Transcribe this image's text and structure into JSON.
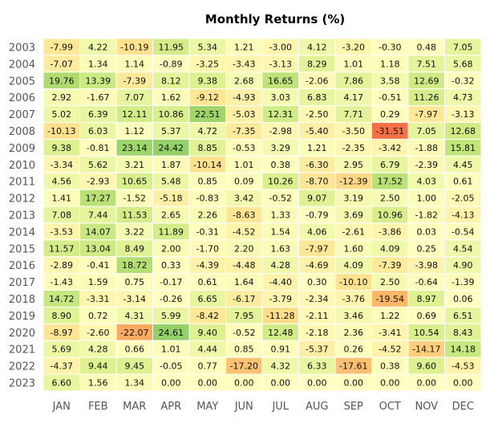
{
  "chart_data": {
    "type": "heatmap",
    "title": "Monthly Returns (%)",
    "xlabel": "",
    "ylabel": "",
    "x": [
      "JAN",
      "FEB",
      "MAR",
      "APR",
      "MAY",
      "JUN",
      "JUL",
      "AUG",
      "SEP",
      "OCT",
      "NOV",
      "DEC"
    ],
    "y": [
      "2003",
      "2004",
      "2005",
      "2006",
      "2007",
      "2008",
      "2009",
      "2010",
      "2011",
      "2012",
      "2013",
      "2014",
      "2015",
      "2016",
      "2017",
      "2018",
      "2019",
      "2020",
      "2021",
      "2022",
      "2023"
    ],
    "values": [
      [
        -7.99,
        4.22,
        -10.19,
        11.95,
        5.34,
        1.21,
        -3.0,
        4.12,
        -3.2,
        -0.3,
        0.48,
        7.05
      ],
      [
        -7.07,
        1.34,
        1.14,
        -0.89,
        -3.25,
        -3.43,
        -3.13,
        8.29,
        1.01,
        1.18,
        7.51,
        5.68
      ],
      [
        19.76,
        13.39,
        -7.39,
        8.12,
        9.38,
        2.68,
        16.65,
        -2.06,
        7.86,
        3.58,
        12.69,
        -0.32
      ],
      [
        2.92,
        -1.67,
        7.07,
        1.62,
        -9.12,
        -4.93,
        3.03,
        6.83,
        4.17,
        -0.51,
        11.26,
        4.73
      ],
      [
        5.02,
        6.39,
        12.11,
        10.86,
        22.51,
        -5.03,
        12.31,
        -2.5,
        7.71,
        0.29,
        -7.97,
        -3.13
      ],
      [
        -10.13,
        6.03,
        1.12,
        5.37,
        4.72,
        -7.35,
        -2.98,
        -5.4,
        -3.5,
        -31.51,
        7.05,
        12.68
      ],
      [
        9.38,
        -0.81,
        23.14,
        24.42,
        8.85,
        -0.53,
        3.29,
        1.21,
        -2.35,
        -3.42,
        -1.88,
        15.81
      ],
      [
        -3.34,
        5.62,
        3.21,
        1.87,
        -10.14,
        1.01,
        0.38,
        -6.3,
        2.95,
        6.79,
        -2.39,
        4.45
      ],
      [
        4.56,
        -2.93,
        10.65,
        5.48,
        0.85,
        0.09,
        10.26,
        -8.7,
        -12.39,
        17.52,
        4.03,
        0.61
      ],
      [
        1.41,
        17.27,
        -1.52,
        -5.18,
        -0.83,
        3.42,
        -0.52,
        9.07,
        3.19,
        2.5,
        1.0,
        -2.05
      ],
      [
        7.08,
        7.44,
        11.53,
        2.65,
        2.26,
        -8.63,
        1.33,
        -0.79,
        3.69,
        10.96,
        -1.82,
        -4.13
      ],
      [
        -3.53,
        14.07,
        3.22,
        11.89,
        -0.31,
        -4.52,
        1.54,
        4.06,
        -2.61,
        -3.86,
        0.03,
        -0.54
      ],
      [
        11.57,
        13.04,
        8.49,
        2.0,
        -1.7,
        2.2,
        1.63,
        -7.97,
        1.6,
        4.09,
        0.25,
        4.54
      ],
      [
        -2.89,
        -0.41,
        18.72,
        0.33,
        -4.39,
        -4.48,
        4.28,
        -4.69,
        4.09,
        -7.39,
        -3.98,
        4.9
      ],
      [
        -1.43,
        1.59,
        0.75,
        -0.17,
        0.61,
        1.64,
        -4.4,
        0.3,
        -10.1,
        2.5,
        -0.64,
        -1.39
      ],
      [
        14.72,
        -3.31,
        -3.14,
        -0.26,
        6.65,
        -6.17,
        -3.79,
        -2.34,
        -3.76,
        -19.54,
        8.97,
        0.06
      ],
      [
        8.9,
        0.72,
        4.31,
        5.99,
        -8.42,
        7.95,
        -11.28,
        -2.11,
        3.46,
        1.22,
        0.69,
        6.51
      ],
      [
        -8.97,
        -2.6,
        -22.07,
        24.61,
        9.4,
        -0.52,
        12.48,
        -2.18,
        2.36,
        -3.41,
        10.54,
        8.43
      ],
      [
        5.69,
        4.28,
        0.66,
        1.01,
        4.44,
        0.85,
        0.91,
        -5.37,
        0.26,
        -4.52,
        -14.17,
        14.18
      ],
      [
        -4.37,
        9.44,
        9.45,
        -0.05,
        0.77,
        -17.2,
        4.32,
        6.33,
        -17.61,
        0.38,
        9.6,
        -4.53
      ],
      [
        6.6,
        1.56,
        1.34,
        0.0,
        0.0,
        0.0,
        0.0,
        0.0,
        0.0,
        0.0,
        0.0,
        0.0
      ]
    ],
    "colormap": "RdYlGn",
    "color_center": 0,
    "grid": true,
    "legend": "none"
  }
}
